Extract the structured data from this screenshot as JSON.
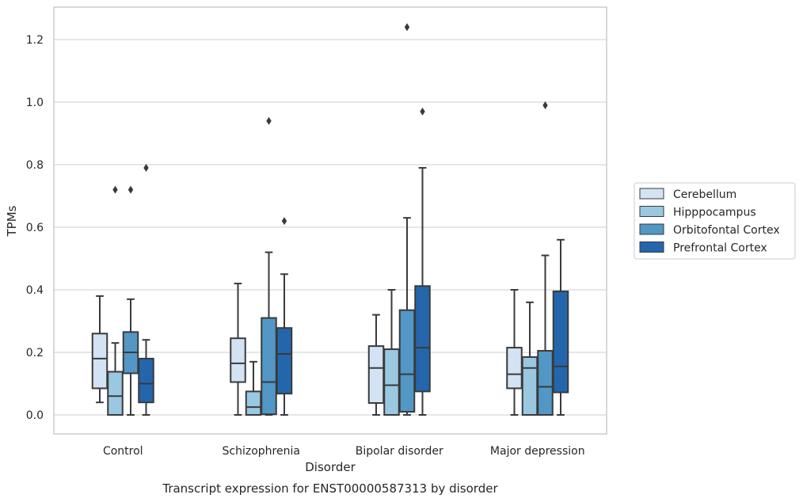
{
  "caption": "Transcript expression for ENST00000587313 by disorder",
  "chart_data": {
    "type": "box",
    "title": "",
    "xlabel": "Disorder",
    "ylabel": "TPMs",
    "ylim": [
      -0.06,
      1.31
    ],
    "yticks": [
      "0.0",
      "0.2",
      "0.4",
      "0.6",
      "0.8",
      "1.0",
      "1.2"
    ],
    "grid": "horizontal",
    "legend_position": "right",
    "categories": [
      "Control",
      "Schizophrenia",
      "Bipolar disorder",
      "Major depression"
    ],
    "series": [
      {
        "name": "Cerebellum",
        "color": "#d3e3f3",
        "boxes": [
          {
            "whislo": 0.04,
            "q1": 0.085,
            "med": 0.18,
            "q3": 0.26,
            "whishi": 0.38,
            "fliers": []
          },
          {
            "whislo": 0.0,
            "q1": 0.105,
            "med": 0.165,
            "q3": 0.245,
            "whishi": 0.42,
            "fliers": []
          },
          {
            "whislo": 0.0,
            "q1": 0.038,
            "med": 0.15,
            "q3": 0.22,
            "whishi": 0.32,
            "fliers": []
          },
          {
            "whislo": 0.0,
            "q1": 0.085,
            "med": 0.13,
            "q3": 0.215,
            "whishi": 0.4,
            "fliers": []
          }
        ]
      },
      {
        "name": "Hipppocampus",
        "color": "#9ac8e0",
        "boxes": [
          {
            "whislo": 0.0,
            "q1": 0.0,
            "med": 0.06,
            "q3": 0.138,
            "whishi": 0.23,
            "fliers": [
              0.72
            ]
          },
          {
            "whislo": 0.0,
            "q1": 0.0,
            "med": 0.025,
            "q3": 0.075,
            "whishi": 0.17,
            "fliers": []
          },
          {
            "whislo": 0.0,
            "q1": 0.0,
            "med": 0.095,
            "q3": 0.21,
            "whishi": 0.4,
            "fliers": []
          },
          {
            "whislo": 0.0,
            "q1": 0.0,
            "med": 0.15,
            "q3": 0.185,
            "whishi": 0.36,
            "fliers": []
          }
        ]
      },
      {
        "name": "Orbitofontal Cortex",
        "color": "#5297c6",
        "boxes": [
          {
            "whislo": 0.0,
            "q1": 0.133,
            "med": 0.2,
            "q3": 0.265,
            "whishi": 0.37,
            "fliers": [
              0.72
            ]
          },
          {
            "whislo": 0.0,
            "q1": 0.002,
            "med": 0.105,
            "q3": 0.31,
            "whishi": 0.52,
            "fliers": [
              0.94
            ]
          },
          {
            "whislo": 0.0,
            "q1": 0.01,
            "med": 0.13,
            "q3": 0.335,
            "whishi": 0.63,
            "fliers": [
              1.24
            ]
          },
          {
            "whislo": 0.0,
            "q1": 0.0,
            "med": 0.09,
            "q3": 0.205,
            "whishi": 0.51,
            "fliers": [
              0.99
            ]
          }
        ]
      },
      {
        "name": "Prefrontal Cortex",
        "color": "#2466ac",
        "boxes": [
          {
            "whislo": 0.0,
            "q1": 0.04,
            "med": 0.1,
            "q3": 0.18,
            "whishi": 0.24,
            "fliers": [
              0.79
            ]
          },
          {
            "whislo": 0.0,
            "q1": 0.068,
            "med": 0.195,
            "q3": 0.278,
            "whishi": 0.45,
            "fliers": [
              0.62
            ]
          },
          {
            "whislo": 0.0,
            "q1": 0.075,
            "med": 0.215,
            "q3": 0.412,
            "whishi": 0.79,
            "fliers": [
              0.97
            ]
          },
          {
            "whislo": 0.0,
            "q1": 0.072,
            "med": 0.155,
            "q3": 0.395,
            "whishi": 0.56,
            "fliers": []
          }
        ]
      }
    ]
  }
}
